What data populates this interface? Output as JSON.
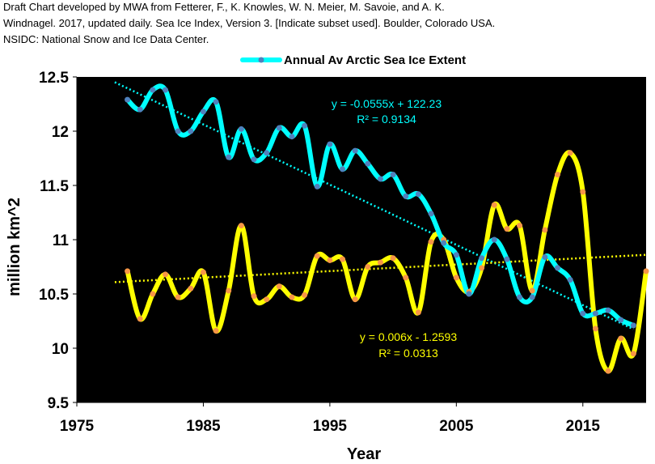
{
  "header": {
    "credit_lines": [
      "Draft Chart developed by MWA from Fetterer, F., K. Knowles, W. N. Meier, M. Savoie, and A. K.",
      "Windnagel. 2017, updated daily. Sea Ice Index, Version 3. [Indicate subset used]. Boulder, Colorado USA.",
      "NSIDC: National Snow and Ice Data Center."
    ]
  },
  "chart_data": {
    "type": "line",
    "title": "",
    "xlabel": "Year",
    "ylabel": "million km^2",
    "xlim": [
      1975,
      2020
    ],
    "ylim": [
      9.5,
      12.5
    ],
    "x_ticks": [
      "1975",
      "1985",
      "1995",
      "2005",
      "2015"
    ],
    "y_ticks": [
      "9.5",
      "10",
      "10.5",
      "11",
      "11.5",
      "12",
      "12.5"
    ],
    "grid": false,
    "legend_position": "top",
    "plot_background": "#000000",
    "series": [
      {
        "name": "Annual Av Arctic Sea Ice Extent",
        "color": "#00ffff",
        "marker_color": "#4f81bd",
        "in_legend": true,
        "x": [
          1979,
          1980,
          1981,
          1982,
          1983,
          1984,
          1985,
          1986,
          1987,
          1988,
          1989,
          1990,
          1991,
          1992,
          1993,
          1994,
          1995,
          1996,
          1997,
          1998,
          1999,
          2000,
          2001,
          2002,
          2003,
          2004,
          2005,
          2006,
          2007,
          2008,
          2009,
          2010,
          2011,
          2012,
          2013,
          2014,
          2015,
          2016,
          2017,
          2018,
          2019
        ],
        "y": [
          12.29,
          12.2,
          12.38,
          12.38,
          12.0,
          12.0,
          12.18,
          12.27,
          11.76,
          12.02,
          11.74,
          11.8,
          12.03,
          11.95,
          12.05,
          11.49,
          11.88,
          11.65,
          11.82,
          11.7,
          11.56,
          11.6,
          11.4,
          11.42,
          11.24,
          10.97,
          10.86,
          10.5,
          10.83,
          11.0,
          10.82,
          10.47,
          10.47,
          10.84,
          10.74,
          10.63,
          10.32,
          10.32,
          10.35,
          10.26,
          10.21
        ]
      },
      {
        "name": "",
        "color": "#ffff00",
        "marker_color": "#f79646",
        "in_legend": false,
        "x": [
          1979,
          1980,
          1981,
          1982,
          1983,
          1984,
          1985,
          1986,
          1987,
          1988,
          1989,
          1990,
          1991,
          1992,
          1993,
          1994,
          1995,
          1996,
          1997,
          1998,
          1999,
          2000,
          2001,
          2002,
          2003,
          2004,
          2005,
          2006,
          2007,
          2008,
          2009,
          2010,
          2011,
          2012,
          2013,
          2014,
          2015,
          2016,
          2017,
          2018,
          2019,
          2020
        ],
        "y": [
          10.71,
          10.27,
          10.5,
          10.68,
          10.47,
          10.55,
          10.7,
          10.16,
          10.53,
          11.13,
          10.48,
          10.45,
          10.57,
          10.47,
          10.49,
          10.85,
          10.81,
          10.82,
          10.45,
          10.75,
          10.79,
          10.83,
          10.65,
          10.33,
          10.98,
          11.0,
          10.65,
          10.52,
          10.74,
          11.32,
          11.1,
          11.13,
          10.53,
          11.09,
          11.6,
          11.8,
          11.44,
          10.18,
          9.79,
          10.09,
          9.95,
          10.71
        ]
      }
    ],
    "trendlines": [
      {
        "equation": "y = -0.0555x + 122.23",
        "r_squared": "R² = 0.9134",
        "slope": -0.0555,
        "intercept": 122.23,
        "x_range": [
          1978,
          2019
        ],
        "color": "#00ffff"
      },
      {
        "equation": "y = 0.006x - 1.2593",
        "r_squared": "R² = 0.0313",
        "slope": 0.006,
        "intercept": -1.2593,
        "x_range": [
          1978,
          2020
        ],
        "color": "#ffff00"
      }
    ]
  }
}
